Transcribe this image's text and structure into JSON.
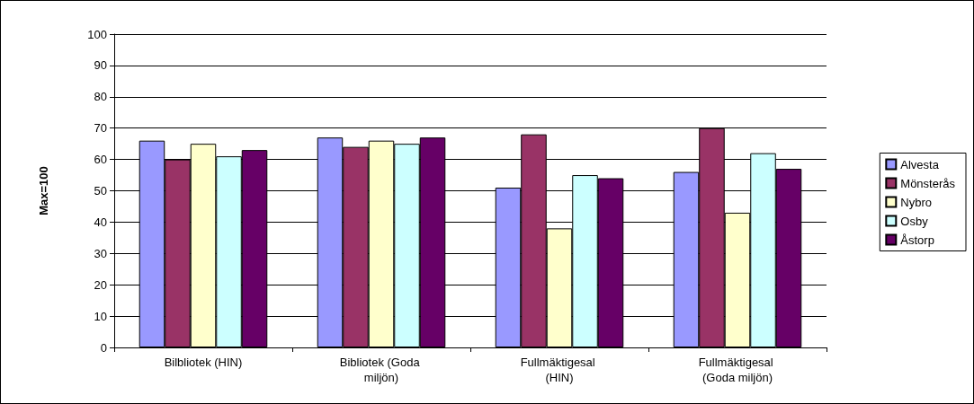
{
  "chart_data": {
    "type": "bar",
    "ylabel": "Max=100",
    "categories": [
      "Bilbliotek (HIN)",
      "Bibliotek (Goda miljön)",
      "Fullmäktigesal (HIN)",
      "Fullmäktigesal (Goda miljön)"
    ],
    "series": [
      {
        "name": "Alvesta",
        "color": "#9999ff",
        "values": [
          66,
          67,
          51,
          56
        ]
      },
      {
        "name": "Mönsterås",
        "color": "#993366",
        "values": [
          60,
          64,
          68,
          70
        ]
      },
      {
        "name": "Nybro",
        "color": "#ffffcc",
        "values": [
          65,
          66,
          38,
          43
        ]
      },
      {
        "name": "Osby",
        "color": "#ccffff",
        "values": [
          61,
          65,
          55,
          62
        ]
      },
      {
        "name": "Åstorp",
        "color": "#660066",
        "values": [
          63,
          67,
          54,
          57
        ]
      }
    ],
    "ylim": [
      0,
      100
    ],
    "yticks": [
      0,
      10,
      20,
      30,
      40,
      50,
      60,
      70,
      80,
      90,
      100
    ],
    "grid": "y",
    "legend": "right"
  }
}
